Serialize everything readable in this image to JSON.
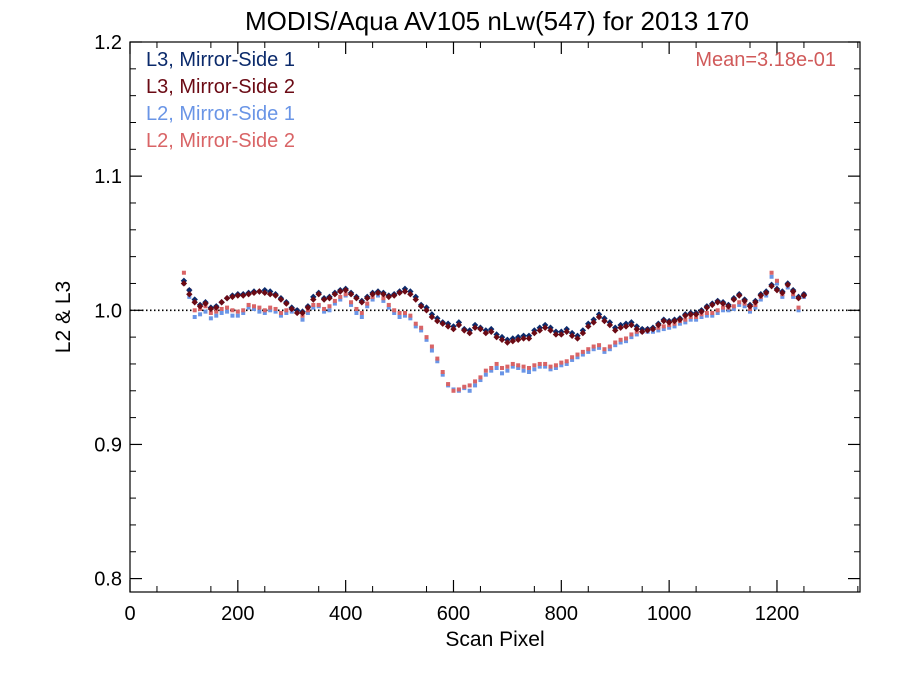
{
  "chart_data": {
    "type": "scatter",
    "title": "MODIS/Aqua AV105 nLw(547) for 2013 170",
    "xlabel": "Scan Pixel",
    "ylabel": "L2 & L3",
    "xlim": [
      0,
      1354
    ],
    "ylim": [
      0.79,
      1.2
    ],
    "xticks": [
      0,
      200,
      400,
      600,
      800,
      1000,
      1200
    ],
    "xtick_labels": [
      "0",
      "200",
      "400",
      "600",
      "800",
      "1000",
      "1200"
    ],
    "yticks": [
      0.8,
      0.9,
      1.0,
      1.1,
      1.2
    ],
    "ytick_labels": [
      "0.8",
      "0.9",
      "1.0",
      "1.1",
      "1.2"
    ],
    "reference_line": 1.0,
    "annotation": "Mean=3.18e-01",
    "annotation_color": "#d05a5a",
    "legend_position": "top-left",
    "series": [
      {
        "name": "L3, Mirror-Side 1",
        "color": "#0b2a6b",
        "marker": "diamond",
        "x": [
          100,
          110,
          120,
          130,
          140,
          150,
          160,
          170,
          180,
          190,
          200,
          210,
          220,
          230,
          240,
          250,
          260,
          270,
          280,
          290,
          300,
          310,
          320,
          330,
          340,
          350,
          360,
          370,
          380,
          390,
          400,
          410,
          420,
          430,
          440,
          450,
          460,
          470,
          480,
          490,
          500,
          510,
          520,
          530,
          540,
          550,
          560,
          570,
          580,
          590,
          600,
          610,
          620,
          630,
          640,
          650,
          660,
          670,
          680,
          690,
          700,
          710,
          720,
          730,
          740,
          750,
          760,
          770,
          780,
          790,
          800,
          810,
          820,
          830,
          840,
          850,
          860,
          870,
          880,
          890,
          900,
          910,
          920,
          930,
          940,
          950,
          960,
          970,
          980,
          990,
          1000,
          1010,
          1020,
          1030,
          1040,
          1050,
          1060,
          1070,
          1080,
          1090,
          1100,
          1110,
          1120,
          1130,
          1140,
          1150,
          1160,
          1170,
          1180,
          1190,
          1200,
          1210,
          1220,
          1230,
          1240,
          1250
        ],
        "y": [
          1.022,
          1.015,
          1.008,
          1.004,
          1.006,
          1.002,
          1.003,
          1.006,
          1.009,
          1.011,
          1.012,
          1.012,
          1.013,
          1.014,
          1.014,
          1.015,
          1.014,
          1.012,
          1.009,
          1.006,
          1.002,
          1.0,
          0.999,
          1.003,
          1.01,
          1.013,
          1.009,
          1.01,
          1.013,
          1.015,
          1.016,
          1.013,
          1.01,
          1.007,
          1.01,
          1.013,
          1.014,
          1.013,
          1.011,
          1.012,
          1.014,
          1.016,
          1.014,
          1.01,
          1.004,
          1.002,
          0.997,
          0.994,
          0.991,
          0.99,
          0.988,
          0.991,
          0.986,
          0.985,
          0.989,
          0.987,
          0.985,
          0.986,
          0.982,
          0.98,
          0.978,
          0.979,
          0.98,
          0.981,
          0.981,
          0.985,
          0.987,
          0.989,
          0.987,
          0.984,
          0.984,
          0.986,
          0.983,
          0.981,
          0.985,
          0.99,
          0.993,
          0.997,
          0.994,
          0.991,
          0.987,
          0.989,
          0.99,
          0.991,
          0.988,
          0.986,
          0.986,
          0.987,
          0.99,
          0.993,
          0.992,
          0.993,
          0.994,
          0.997,
          0.998,
          0.998,
          1.0,
          1.003,
          1.005,
          1.007,
          1.006,
          1.004,
          1.009,
          1.012,
          1.008,
          1.004,
          1.007,
          1.012,
          1.014,
          1.019,
          1.016,
          1.014,
          1.02,
          1.015,
          1.01,
          1.012
        ]
      },
      {
        "name": "L3, Mirror-Side 2",
        "color": "#6b0a14",
        "marker": "diamond",
        "x": [
          100,
          110,
          120,
          130,
          140,
          150,
          160,
          170,
          180,
          190,
          200,
          210,
          220,
          230,
          240,
          250,
          260,
          270,
          280,
          290,
          300,
          310,
          320,
          330,
          340,
          350,
          360,
          370,
          380,
          390,
          400,
          410,
          420,
          430,
          440,
          450,
          460,
          470,
          480,
          490,
          500,
          510,
          520,
          530,
          540,
          550,
          560,
          570,
          580,
          590,
          600,
          610,
          620,
          630,
          640,
          650,
          660,
          670,
          680,
          690,
          700,
          710,
          720,
          730,
          740,
          750,
          760,
          770,
          780,
          790,
          800,
          810,
          820,
          830,
          840,
          850,
          860,
          870,
          880,
          890,
          900,
          910,
          920,
          930,
          940,
          950,
          960,
          970,
          980,
          990,
          1000,
          1010,
          1020,
          1030,
          1040,
          1050,
          1060,
          1070,
          1080,
          1090,
          1100,
          1110,
          1120,
          1130,
          1140,
          1150,
          1160,
          1170,
          1180,
          1190,
          1200,
          1210,
          1220,
          1230,
          1240,
          1250
        ],
        "y": [
          1.02,
          1.012,
          1.006,
          1.003,
          1.005,
          1.001,
          1.002,
          1.006,
          1.009,
          1.01,
          1.011,
          1.011,
          1.012,
          1.013,
          1.014,
          1.013,
          1.012,
          1.011,
          1.008,
          1.005,
          1.001,
          0.998,
          0.998,
          1.002,
          1.008,
          1.012,
          1.008,
          1.009,
          1.012,
          1.014,
          1.015,
          1.012,
          1.009,
          1.006,
          1.009,
          1.012,
          1.013,
          1.012,
          1.01,
          1.011,
          1.013,
          1.014,
          1.012,
          1.008,
          1.003,
          1.0,
          0.995,
          0.992,
          0.99,
          0.988,
          0.986,
          0.989,
          0.985,
          0.983,
          0.987,
          0.986,
          0.983,
          0.984,
          0.98,
          0.978,
          0.976,
          0.977,
          0.978,
          0.979,
          0.979,
          0.983,
          0.985,
          0.987,
          0.985,
          0.982,
          0.982,
          0.984,
          0.981,
          0.979,
          0.983,
          0.988,
          0.991,
          0.995,
          0.992,
          0.989,
          0.985,
          0.987,
          0.988,
          0.989,
          0.986,
          0.984,
          0.985,
          0.986,
          0.989,
          0.992,
          0.991,
          0.992,
          0.993,
          0.996,
          0.997,
          0.997,
          0.999,
          1.002,
          1.004,
          1.006,
          1.005,
          1.003,
          1.008,
          1.011,
          1.007,
          1.003,
          1.006,
          1.011,
          1.013,
          1.018,
          1.015,
          1.013,
          1.019,
          1.014,
          1.009,
          1.011
        ]
      },
      {
        "name": "L2, Mirror-Side 1",
        "color": "#6a95e6",
        "marker": "square",
        "x": [
          100,
          110,
          120,
          130,
          140,
          150,
          160,
          170,
          180,
          190,
          200,
          210,
          220,
          230,
          240,
          250,
          260,
          270,
          280,
          290,
          300,
          310,
          320,
          330,
          340,
          350,
          360,
          370,
          380,
          390,
          400,
          410,
          420,
          430,
          440,
          450,
          460,
          470,
          480,
          490,
          500,
          510,
          520,
          530,
          540,
          550,
          560,
          570,
          580,
          590,
          600,
          610,
          620,
          630,
          640,
          650,
          660,
          670,
          680,
          690,
          700,
          710,
          720,
          730,
          740,
          750,
          760,
          770,
          780,
          790,
          800,
          810,
          820,
          830,
          840,
          850,
          860,
          870,
          880,
          890,
          900,
          910,
          920,
          930,
          940,
          950,
          960,
          970,
          980,
          990,
          1000,
          1010,
          1020,
          1030,
          1040,
          1050,
          1060,
          1070,
          1080,
          1090,
          1100,
          1110,
          1120,
          1130,
          1140,
          1150,
          1160,
          1170,
          1180,
          1190,
          1200,
          1210,
          1220,
          1230,
          1240,
          1250
        ],
        "y": [
          1.02,
          1.01,
          0.995,
          0.997,
          0.999,
          0.994,
          0.996,
          0.998,
          0.999,
          0.996,
          0.996,
          0.998,
          1.002,
          1.001,
          0.999,
          0.998,
          1.0,
          0.999,
          0.996,
          0.998,
          0.999,
          0.999,
          0.993,
          0.998,
          1.002,
          1.003,
          0.999,
          1.0,
          1.005,
          1.008,
          1.011,
          1.004,
          0.998,
          0.995,
          1.003,
          1.008,
          1.011,
          1.007,
          1.002,
          0.998,
          0.995,
          0.996,
          0.994,
          0.988,
          0.985,
          0.978,
          0.97,
          0.962,
          0.952,
          0.944,
          0.941,
          0.94,
          0.942,
          0.94,
          0.944,
          0.948,
          0.952,
          0.955,
          0.957,
          0.953,
          0.955,
          0.958,
          0.957,
          0.955,
          0.954,
          0.956,
          0.958,
          0.958,
          0.956,
          0.957,
          0.959,
          0.96,
          0.963,
          0.965,
          0.967,
          0.969,
          0.971,
          0.972,
          0.969,
          0.971,
          0.974,
          0.976,
          0.977,
          0.98,
          0.982,
          0.984,
          0.984,
          0.984,
          0.985,
          0.986,
          0.987,
          0.988,
          0.99,
          0.991,
          0.993,
          0.993,
          0.995,
          0.996,
          0.996,
          0.998,
          1.0,
          1.0,
          1.001,
          1.004,
          1.003,
          0.999,
          1.002,
          1.008,
          1.011,
          1.025,
          1.02,
          1.01,
          1.017,
          1.01,
          1.0,
          1.01
        ]
      },
      {
        "name": "L2, Mirror-Side 2",
        "color": "#d96466",
        "marker": "square",
        "x": [
          100,
          110,
          120,
          130,
          140,
          150,
          160,
          170,
          180,
          190,
          200,
          210,
          220,
          230,
          240,
          250,
          260,
          270,
          280,
          290,
          300,
          310,
          320,
          330,
          340,
          350,
          360,
          370,
          380,
          390,
          400,
          410,
          420,
          430,
          440,
          450,
          460,
          470,
          480,
          490,
          500,
          510,
          520,
          530,
          540,
          550,
          560,
          570,
          580,
          590,
          600,
          610,
          620,
          630,
          640,
          650,
          660,
          670,
          680,
          690,
          700,
          710,
          720,
          730,
          740,
          750,
          760,
          770,
          780,
          790,
          800,
          810,
          820,
          830,
          840,
          850,
          860,
          870,
          880,
          890,
          900,
          910,
          920,
          930,
          940,
          950,
          960,
          970,
          980,
          990,
          1000,
          1010,
          1020,
          1030,
          1040,
          1050,
          1060,
          1070,
          1080,
          1090,
          1100,
          1110,
          1120,
          1130,
          1140,
          1150,
          1160,
          1170,
          1180,
          1190,
          1200,
          1210,
          1220,
          1230,
          1240,
          1250
        ],
        "y": [
          1.028,
          1.015,
          1.0,
          1.001,
          1.003,
          0.998,
          0.999,
          1.001,
          1.002,
          1.0,
          0.999,
          1.0,
          1.004,
          1.003,
          1.002,
          1.0,
          1.002,
          1.001,
          0.998,
          1.0,
          1.001,
          1.0,
          0.996,
          1.0,
          1.004,
          1.004,
          1.001,
          1.003,
          1.007,
          1.01,
          1.012,
          1.006,
          1.001,
          0.998,
          1.005,
          1.01,
          1.013,
          1.009,
          1.004,
          1.0,
          0.998,
          0.998,
          0.996,
          0.99,
          0.987,
          0.98,
          0.973,
          0.964,
          0.954,
          0.945,
          0.94,
          0.941,
          0.943,
          0.944,
          0.947,
          0.95,
          0.955,
          0.957,
          0.96,
          0.957,
          0.958,
          0.96,
          0.959,
          0.958,
          0.957,
          0.959,
          0.96,
          0.96,
          0.958,
          0.959,
          0.961,
          0.962,
          0.965,
          0.967,
          0.969,
          0.971,
          0.973,
          0.974,
          0.971,
          0.973,
          0.976,
          0.978,
          0.979,
          0.982,
          0.984,
          0.986,
          0.986,
          0.986,
          0.987,
          0.988,
          0.989,
          0.99,
          0.992,
          0.993,
          0.995,
          0.995,
          0.997,
          0.998,
          0.998,
          1.0,
          1.002,
          1.002,
          1.003,
          1.006,
          1.005,
          1.001,
          1.004,
          1.01,
          1.013,
          1.028,
          1.022,
          1.012,
          1.019,
          1.012,
          1.002,
          1.012
        ]
      }
    ]
  }
}
